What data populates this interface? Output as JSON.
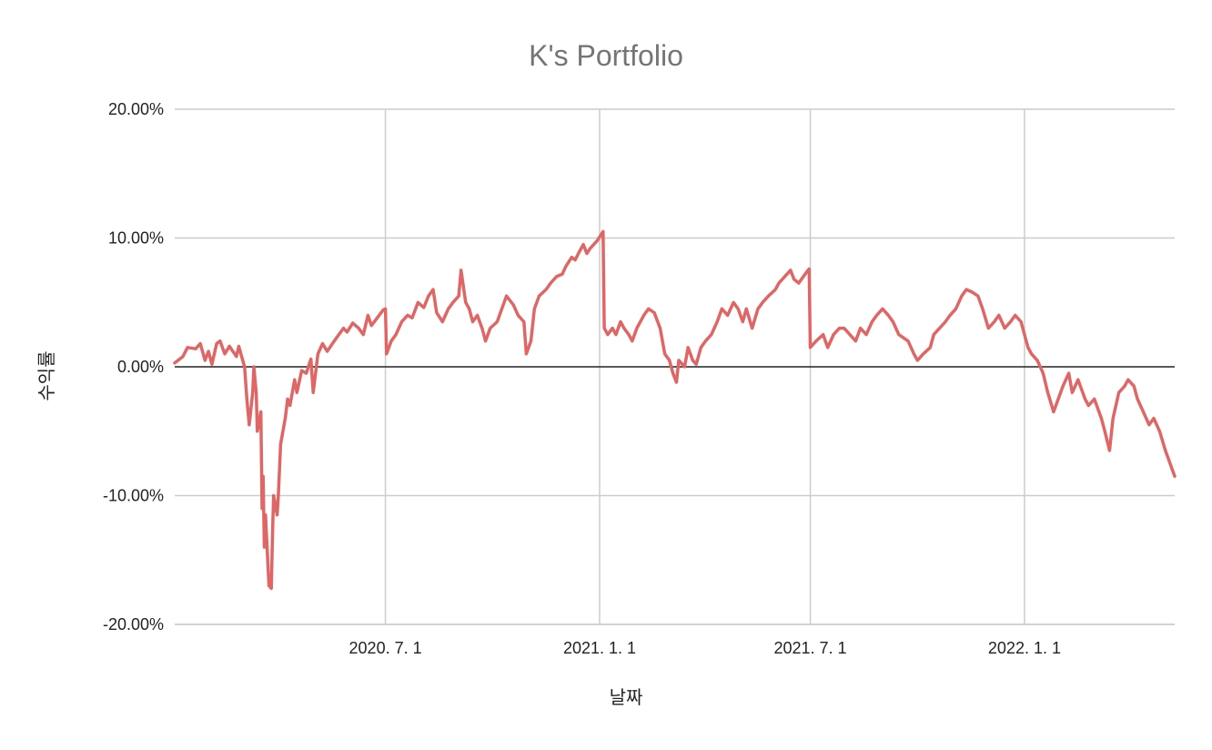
{
  "chart_data": {
    "type": "line",
    "title": "K's Portfolio",
    "xlabel": "날짜",
    "ylabel": "수익률",
    "ylim": [
      -0.2,
      0.2
    ],
    "xlim": [
      "2020-01-02",
      "2022-05-10"
    ],
    "y_ticks": [
      {
        "value": 0.2,
        "label": "20.00%"
      },
      {
        "value": 0.1,
        "label": "10.00%"
      },
      {
        "value": 0.0,
        "label": "0.00%"
      },
      {
        "value": -0.1,
        "label": "-10.00%"
      },
      {
        "value": -0.2,
        "label": "-20.00%"
      }
    ],
    "x_ticks": [
      {
        "value": "2020-07-01",
        "label": "2020. 7. 1"
      },
      {
        "value": "2021-01-01",
        "label": "2021. 1. 1"
      },
      {
        "value": "2021-07-01",
        "label": "2021. 7. 1"
      },
      {
        "value": "2022-01-01",
        "label": "2022. 1. 1"
      }
    ],
    "grid": true,
    "legend": "none",
    "series": [
      {
        "color": "#e06666",
        "points": [
          [
            "2020-01-02",
            0.003
          ],
          [
            "2020-01-09",
            0.008
          ],
          [
            "2020-01-13",
            0.015
          ],
          [
            "2020-01-20",
            0.014
          ],
          [
            "2020-01-24",
            0.018
          ],
          [
            "2020-01-28",
            0.005
          ],
          [
            "2020-01-31",
            0.012
          ],
          [
            "2020-02-03",
            0.002
          ],
          [
            "2020-02-07",
            0.018
          ],
          [
            "2020-02-10",
            0.02
          ],
          [
            "2020-02-14",
            0.01
          ],
          [
            "2020-02-18",
            0.016
          ],
          [
            "2020-02-24",
            0.008
          ],
          [
            "2020-02-26",
            0.016
          ],
          [
            "2020-03-02",
            0.0
          ],
          [
            "2020-03-04",
            -0.025
          ],
          [
            "2020-03-06",
            -0.045
          ],
          [
            "2020-03-09",
            -0.02
          ],
          [
            "2020-03-10",
            0.0
          ],
          [
            "2020-03-12",
            -0.02
          ],
          [
            "2020-03-13",
            -0.05
          ],
          [
            "2020-03-16",
            -0.035
          ],
          [
            "2020-03-17",
            -0.11
          ],
          [
            "2020-03-18",
            -0.085
          ],
          [
            "2020-03-19",
            -0.14
          ],
          [
            "2020-03-20",
            -0.115
          ],
          [
            "2020-03-23",
            -0.17
          ],
          [
            "2020-03-25",
            -0.172
          ],
          [
            "2020-03-26",
            -0.13
          ],
          [
            "2020-03-27",
            -0.1
          ],
          [
            "2020-03-30",
            -0.115
          ],
          [
            "2020-03-31",
            -0.1
          ],
          [
            "2020-04-02",
            -0.06
          ],
          [
            "2020-04-06",
            -0.04
          ],
          [
            "2020-04-08",
            -0.025
          ],
          [
            "2020-04-10",
            -0.03
          ],
          [
            "2020-04-14",
            -0.01
          ],
          [
            "2020-04-16",
            -0.02
          ],
          [
            "2020-04-20",
            -0.003
          ],
          [
            "2020-04-24",
            -0.005
          ],
          [
            "2020-04-28",
            0.006
          ],
          [
            "2020-04-30",
            -0.02
          ],
          [
            "2020-05-04",
            0.01
          ],
          [
            "2020-05-08",
            0.018
          ],
          [
            "2020-05-12",
            0.012
          ],
          [
            "2020-05-18",
            0.02
          ],
          [
            "2020-05-22",
            0.025
          ],
          [
            "2020-05-26",
            0.03
          ],
          [
            "2020-05-29",
            0.027
          ],
          [
            "2020-06-03",
            0.034
          ],
          [
            "2020-06-08",
            0.03
          ],
          [
            "2020-06-12",
            0.025
          ],
          [
            "2020-06-16",
            0.04
          ],
          [
            "2020-06-19",
            0.032
          ],
          [
            "2020-06-24",
            0.038
          ],
          [
            "2020-06-29",
            0.044
          ],
          [
            "2020-07-01",
            0.045
          ],
          [
            "2020-07-02",
            0.01
          ],
          [
            "2020-07-06",
            0.02
          ],
          [
            "2020-07-10",
            0.025
          ],
          [
            "2020-07-15",
            0.035
          ],
          [
            "2020-07-20",
            0.04
          ],
          [
            "2020-07-24",
            0.038
          ],
          [
            "2020-07-29",
            0.05
          ],
          [
            "2020-08-03",
            0.046
          ],
          [
            "2020-08-07",
            0.055
          ],
          [
            "2020-08-11",
            0.06
          ],
          [
            "2020-08-14",
            0.042
          ],
          [
            "2020-08-19",
            0.035
          ],
          [
            "2020-08-24",
            0.045
          ],
          [
            "2020-08-28",
            0.05
          ],
          [
            "2020-09-02",
            0.055
          ],
          [
            "2020-09-04",
            0.075
          ],
          [
            "2020-09-08",
            0.05
          ],
          [
            "2020-09-11",
            0.045
          ],
          [
            "2020-09-14",
            0.035
          ],
          [
            "2020-09-18",
            0.04
          ],
          [
            "2020-09-22",
            0.03
          ],
          [
            "2020-09-25",
            0.02
          ],
          [
            "2020-09-29",
            0.03
          ],
          [
            "2020-10-05",
            0.035
          ],
          [
            "2020-10-09",
            0.045
          ],
          [
            "2020-10-13",
            0.055
          ],
          [
            "2020-10-19",
            0.048
          ],
          [
            "2020-10-23",
            0.04
          ],
          [
            "2020-10-28",
            0.035
          ],
          [
            "2020-10-30",
            0.01
          ],
          [
            "2020-11-03",
            0.02
          ],
          [
            "2020-11-06",
            0.045
          ],
          [
            "2020-11-10",
            0.055
          ],
          [
            "2020-11-16",
            0.06
          ],
          [
            "2020-11-20",
            0.065
          ],
          [
            "2020-11-25",
            0.07
          ],
          [
            "2020-11-30",
            0.072
          ],
          [
            "2020-12-03",
            0.078
          ],
          [
            "2020-12-08",
            0.085
          ],
          [
            "2020-12-11",
            0.083
          ],
          [
            "2020-12-15",
            0.09
          ],
          [
            "2020-12-18",
            0.095
          ],
          [
            "2020-12-21",
            0.088
          ],
          [
            "2020-12-24",
            0.092
          ],
          [
            "2020-12-30",
            0.098
          ],
          [
            "2021-01-04",
            0.105
          ],
          [
            "2021-01-05",
            0.03
          ],
          [
            "2021-01-08",
            0.025
          ],
          [
            "2021-01-12",
            0.03
          ],
          [
            "2021-01-15",
            0.025
          ],
          [
            "2021-01-19",
            0.035
          ],
          [
            "2021-01-22",
            0.03
          ],
          [
            "2021-01-26",
            0.025
          ],
          [
            "2021-01-29",
            0.02
          ],
          [
            "2021-02-02",
            0.03
          ],
          [
            "2021-02-08",
            0.04
          ],
          [
            "2021-02-12",
            0.045
          ],
          [
            "2021-02-17",
            0.042
          ],
          [
            "2021-02-22",
            0.03
          ],
          [
            "2021-02-26",
            0.01
          ],
          [
            "2021-03-02",
            0.005
          ],
          [
            "2021-03-05",
            -0.005
          ],
          [
            "2021-03-08",
            -0.012
          ],
          [
            "2021-03-10",
            0.005
          ],
          [
            "2021-03-15",
            0.0
          ],
          [
            "2021-03-18",
            0.015
          ],
          [
            "2021-03-22",
            0.005
          ],
          [
            "2021-03-25",
            0.002
          ],
          [
            "2021-03-29",
            0.015
          ],
          [
            "2021-04-02",
            0.02
          ],
          [
            "2021-04-07",
            0.025
          ],
          [
            "2021-04-12",
            0.035
          ],
          [
            "2021-04-16",
            0.045
          ],
          [
            "2021-04-21",
            0.04
          ],
          [
            "2021-04-26",
            0.05
          ],
          [
            "2021-04-30",
            0.045
          ],
          [
            "2021-05-04",
            0.035
          ],
          [
            "2021-05-07",
            0.045
          ],
          [
            "2021-05-12",
            0.03
          ],
          [
            "2021-05-17",
            0.045
          ],
          [
            "2021-05-21",
            0.05
          ],
          [
            "2021-05-26",
            0.055
          ],
          [
            "2021-06-01",
            0.06
          ],
          [
            "2021-06-04",
            0.065
          ],
          [
            "2021-06-09",
            0.07
          ],
          [
            "2021-06-14",
            0.075
          ],
          [
            "2021-06-17",
            0.068
          ],
          [
            "2021-06-21",
            0.065
          ],
          [
            "2021-06-25",
            0.07
          ],
          [
            "2021-06-29",
            0.075
          ],
          [
            "2021-06-30",
            0.076
          ],
          [
            "2021-07-01",
            0.015
          ],
          [
            "2021-07-06",
            0.02
          ],
          [
            "2021-07-12",
            0.025
          ],
          [
            "2021-07-16",
            0.015
          ],
          [
            "2021-07-21",
            0.025
          ],
          [
            "2021-07-26",
            0.03
          ],
          [
            "2021-07-30",
            0.03
          ],
          [
            "2021-08-04",
            0.025
          ],
          [
            "2021-08-09",
            0.02
          ],
          [
            "2021-08-13",
            0.03
          ],
          [
            "2021-08-18",
            0.025
          ],
          [
            "2021-08-23",
            0.035
          ],
          [
            "2021-08-27",
            0.04
          ],
          [
            "2021-09-01",
            0.045
          ],
          [
            "2021-09-06",
            0.04
          ],
          [
            "2021-09-10",
            0.035
          ],
          [
            "2021-09-15",
            0.025
          ],
          [
            "2021-09-23",
            0.02
          ],
          [
            "2021-09-28",
            0.01
          ],
          [
            "2021-10-01",
            0.005
          ],
          [
            "2021-10-06",
            0.01
          ],
          [
            "2021-10-12",
            0.015
          ],
          [
            "2021-10-15",
            0.025
          ],
          [
            "2021-10-20",
            0.03
          ],
          [
            "2021-10-25",
            0.035
          ],
          [
            "2021-10-29",
            0.04
          ],
          [
            "2021-11-03",
            0.045
          ],
          [
            "2021-11-08",
            0.055
          ],
          [
            "2021-11-12",
            0.06
          ],
          [
            "2021-11-17",
            0.058
          ],
          [
            "2021-11-22",
            0.055
          ],
          [
            "2021-11-26",
            0.045
          ],
          [
            "2021-12-01",
            0.03
          ],
          [
            "2021-12-06",
            0.035
          ],
          [
            "2021-12-10",
            0.04
          ],
          [
            "2021-12-15",
            0.03
          ],
          [
            "2021-12-20",
            0.035
          ],
          [
            "2021-12-24",
            0.04
          ],
          [
            "2021-12-29",
            0.035
          ],
          [
            "2022-01-04",
            0.015
          ],
          [
            "2022-01-07",
            0.01
          ],
          [
            "2022-01-12",
            0.005
          ],
          [
            "2022-01-17",
            -0.005
          ],
          [
            "2022-01-21",
            -0.02
          ],
          [
            "2022-01-26",
            -0.035
          ],
          [
            "2022-02-03",
            -0.015
          ],
          [
            "2022-02-08",
            -0.005
          ],
          [
            "2022-02-11",
            -0.02
          ],
          [
            "2022-02-16",
            -0.01
          ],
          [
            "2022-02-22",
            -0.025
          ],
          [
            "2022-02-25",
            -0.03
          ],
          [
            "2022-03-02",
            -0.025
          ],
          [
            "2022-03-08",
            -0.04
          ],
          [
            "2022-03-11",
            -0.05
          ],
          [
            "2022-03-15",
            -0.065
          ],
          [
            "2022-03-18",
            -0.04
          ],
          [
            "2022-03-23",
            -0.02
          ],
          [
            "2022-03-28",
            -0.015
          ],
          [
            "2022-03-31",
            -0.01
          ],
          [
            "2022-04-05",
            -0.015
          ],
          [
            "2022-04-08",
            -0.025
          ],
          [
            "2022-04-13",
            -0.035
          ],
          [
            "2022-04-18",
            -0.045
          ],
          [
            "2022-04-22",
            -0.04
          ],
          [
            "2022-04-27",
            -0.05
          ],
          [
            "2022-05-02",
            -0.065
          ],
          [
            "2022-05-06",
            -0.075
          ],
          [
            "2022-05-10",
            -0.085
          ]
        ]
      }
    ]
  }
}
